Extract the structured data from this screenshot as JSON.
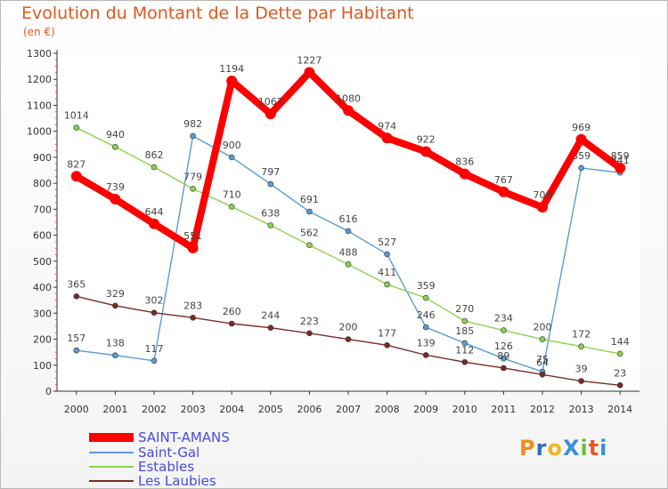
{
  "header": {
    "title": "Evolution du Montant de la Dette par Habitant",
    "unit": "(en €)"
  },
  "brand": {
    "text": "ProXiti",
    "letters": [
      "P",
      "r",
      "o",
      "X",
      "i",
      "t",
      "i"
    ],
    "colors": [
      "#f28c1e",
      "#2f6fb6",
      "#f2b51e",
      "#3a8fd6",
      "#6abd3a",
      "#e8571e",
      "#3a8fd6"
    ]
  },
  "chart_data": {
    "type": "line",
    "title": "Evolution du Montant de la Dette par Habitant",
    "subtitle": "(en €)",
    "xlabel": "",
    "ylabel": "",
    "x": [
      "2000",
      "2001",
      "2002",
      "2003",
      "2004",
      "2005",
      "2006",
      "2007",
      "2008",
      "2009",
      "2010",
      "2011",
      "2012",
      "2013",
      "2014"
    ],
    "ylim": [
      0,
      1300
    ],
    "yticks": [
      0,
      100,
      200,
      300,
      400,
      500,
      600,
      700,
      800,
      900,
      1000,
      1100,
      1200,
      1300
    ],
    "grid": false,
    "legend_position": "bottom-left",
    "series": [
      {
        "name": "SAINT-AMANS",
        "color": "#ff0000",
        "emphasis": true,
        "values": [
          827,
          739,
          644,
          551,
          1194,
          1067,
          1227,
          1080,
          974,
          922,
          836,
          767,
          708,
          969,
          859
        ]
      },
      {
        "name": "Saint-Gal",
        "color": "#5b9bd5",
        "values": [
          157,
          138,
          117,
          982,
          900,
          797,
          691,
          616,
          527,
          246,
          185,
          126,
          75,
          859,
          841
        ]
      },
      {
        "name": "Estables",
        "color": "#8fd14f",
        "values": [
          1014,
          940,
          862,
          779,
          710,
          638,
          562,
          488,
          411,
          359,
          270,
          234,
          200,
          172,
          144
        ]
      },
      {
        "name": "Les Laubies",
        "color": "#7a2a2a",
        "values": [
          365,
          329,
          302,
          283,
          260,
          244,
          223,
          200,
          177,
          139,
          112,
          89,
          64,
          39,
          23
        ]
      }
    ]
  }
}
